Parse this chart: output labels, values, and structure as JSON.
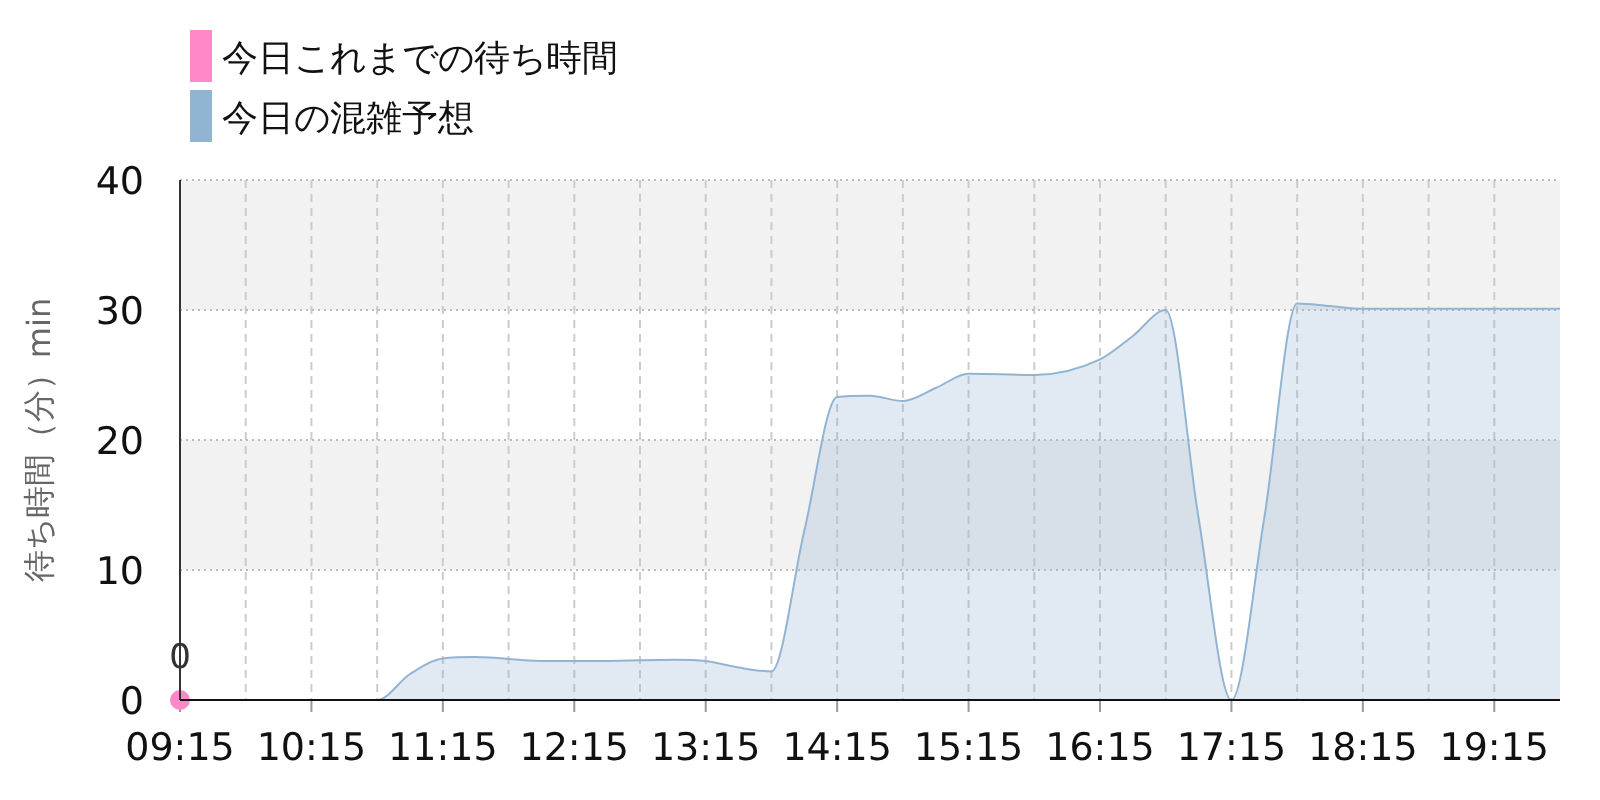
{
  "chart_data": {
    "type": "area",
    "ylabel": "待ち時間（分）min",
    "series": [
      {
        "name": "今日これまでの待ち時間",
        "type": "scatter",
        "color": "#ff88c8",
        "x": [
          9.25
        ],
        "values": [
          0
        ],
        "value_labels": [
          "0"
        ]
      },
      {
        "name": "今日の混雑予想",
        "color": "#92b4d3",
        "x": [
          9.25,
          10.25,
          10.75,
          11.0,
          11.25,
          11.5,
          12.0,
          12.5,
          13.0,
          13.25,
          13.5,
          13.75,
          14.0,
          14.25,
          14.5,
          14.75,
          15.0,
          15.25,
          15.75,
          16.25,
          16.5,
          16.75,
          17.0,
          17.25,
          17.5,
          17.75,
          18.0,
          18.25,
          18.75,
          19.25,
          19.75
        ],
        "values": [
          0,
          0,
          0,
          2,
          3.2,
          3.3,
          3,
          3,
          3.1,
          3,
          2.5,
          2.2,
          13,
          23.3,
          23.4,
          23,
          24,
          25.1,
          25,
          26.2,
          28,
          30,
          14,
          0,
          14,
          30.5,
          30.3,
          30.1,
          30.1,
          30.1,
          30.1
        ]
      }
    ],
    "xlim": [
      9.25,
      19.75
    ],
    "xticks": [
      {
        "value": 9.25,
        "label": "09:15"
      },
      {
        "value": 9.75,
        "label": null
      },
      {
        "value": 10.25,
        "label": "10:15"
      },
      {
        "value": 10.75,
        "label": null
      },
      {
        "value": 11.25,
        "label": "11:15"
      },
      {
        "value": 11.75,
        "label": null
      },
      {
        "value": 12.25,
        "label": "12:15"
      },
      {
        "value": 12.75,
        "label": null
      },
      {
        "value": 13.25,
        "label": "13:15"
      },
      {
        "value": 13.75,
        "label": null
      },
      {
        "value": 14.25,
        "label": "14:15"
      },
      {
        "value": 14.75,
        "label": null
      },
      {
        "value": 15.25,
        "label": "15:15"
      },
      {
        "value": 15.75,
        "label": null
      },
      {
        "value": 16.25,
        "label": "16:15"
      },
      {
        "value": 16.75,
        "label": null
      },
      {
        "value": 17.25,
        "label": "17:15"
      },
      {
        "value": 17.75,
        "label": null
      },
      {
        "value": 18.25,
        "label": "18:15"
      },
      {
        "value": 18.75,
        "label": null
      },
      {
        "value": 19.25,
        "label": "19:15"
      }
    ],
    "ylim": [
      0,
      40
    ],
    "yticks": [
      0,
      10,
      20,
      30,
      40
    ],
    "grid": true,
    "legend": "top left"
  }
}
